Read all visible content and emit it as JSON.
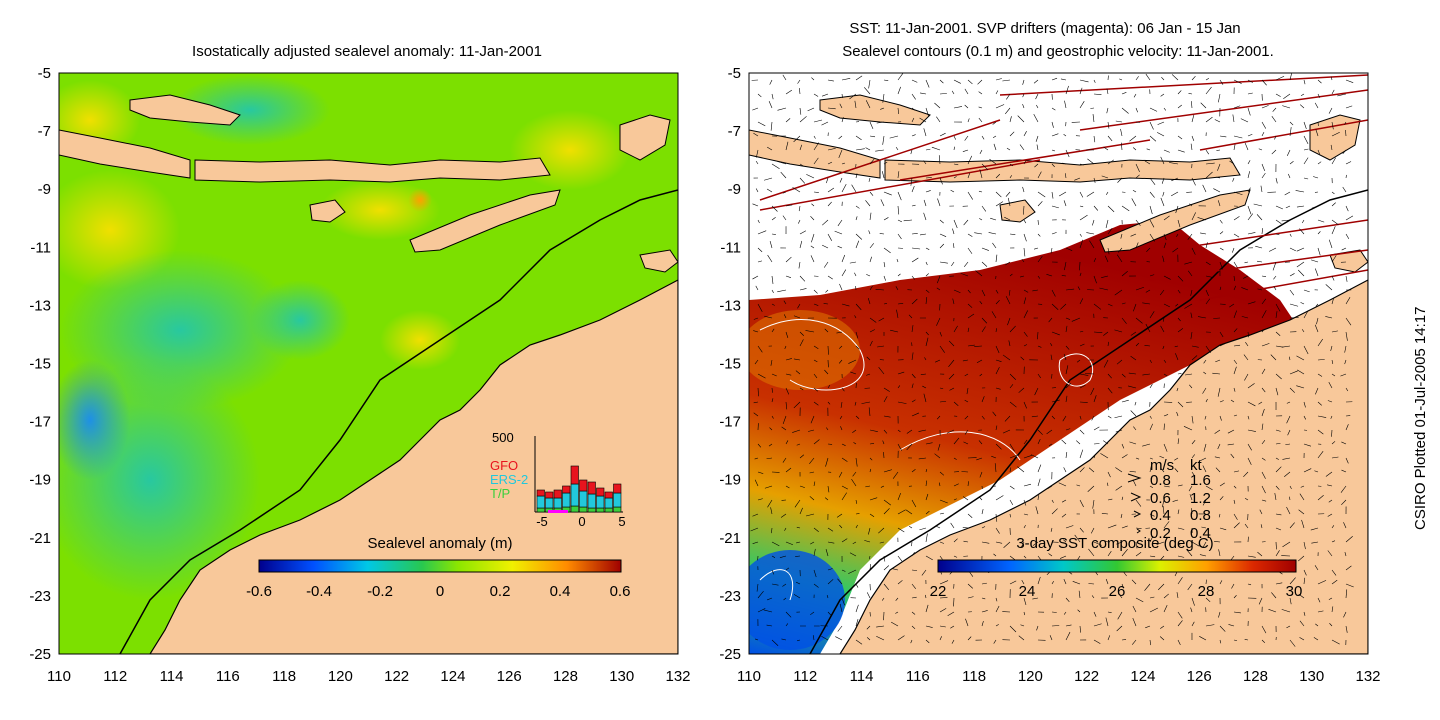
{
  "left_map": {
    "title": "Isostatically adjusted sealevel anomaly: 11-Jan-2001",
    "colorbar_label": "Sealevel anomaly (m)",
    "colorbar_ticks": [
      "-0.6",
      "-0.4",
      "-0.2",
      "0",
      "0.2",
      "0.4",
      "0.6"
    ],
    "histogram": {
      "ymax_label": "500",
      "legend": [
        "GFO",
        "ERS-2",
        "T/P"
      ],
      "xticks": [
        "-5",
        "0",
        "5"
      ],
      "colors": {
        "GFO": "#e8141e",
        "ERS-2": "#22c8dc",
        "T/P": "#3ccf3c"
      }
    }
  },
  "right_map": {
    "title_line1": "SST: 11-Jan-2001. SVP drifters (magenta): 06 Jan - 15 Jan",
    "title_line2": "Sealevel contours (0.1 m) and geostrophic velocity: 11-Jan-2001.",
    "colorbar_label": "3-day SST composite (deg C)",
    "colorbar_ticks": [
      "22",
      "24",
      "26",
      "28",
      "30"
    ],
    "velocity_key": {
      "header_ms": "m/s",
      "header_kt": "kt",
      "rows": [
        {
          "ms": "0.8",
          "kt": "1.6"
        },
        {
          "ms": "0.6",
          "kt": "1.2"
        },
        {
          "ms": "0.4",
          "kt": "0.8"
        },
        {
          "ms": "0.2",
          "kt": "0.4"
        }
      ]
    }
  },
  "axes": {
    "x_ticks": [
      "110",
      "112",
      "114",
      "116",
      "118",
      "120",
      "122",
      "124",
      "126",
      "128",
      "130",
      "132"
    ],
    "y_ticks": [
      "-5",
      "-7",
      "-9",
      "-11",
      "-13",
      "-15",
      "-17",
      "-19",
      "-21",
      "-23",
      "-25"
    ],
    "lon_range": [
      110,
      132
    ],
    "lat_range": [
      -25,
      -5
    ]
  },
  "credit": "CSIRO Plotted 01-Jul-2005 14:17",
  "colors": {
    "land": "#f8c89a",
    "sla_base": "#7ce000",
    "sst_warm": "#a00000",
    "arrow_dark_red": "#a00000"
  }
}
